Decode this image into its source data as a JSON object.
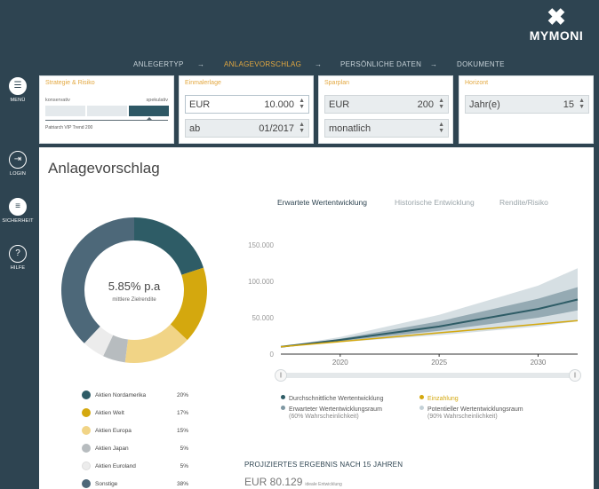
{
  "brand": {
    "name": "MYMONI"
  },
  "steps": [
    {
      "label": "ANLEGERTYP",
      "active": false
    },
    {
      "label": "→",
      "active": false
    },
    {
      "label": "ANLAGEVORSCHLAG",
      "active": true
    },
    {
      "label": "→",
      "active": false
    },
    {
      "label": "PERSÖNLICHE DATEN",
      "active": false
    },
    {
      "label": "→",
      "active": false
    },
    {
      "label": "DOKUMENTE",
      "active": false
    }
  ],
  "rail": {
    "menu": "MENÜ",
    "login": "LOGIN",
    "security": "SICHERHEIT",
    "help": "HILFE"
  },
  "filters": {
    "strategy": {
      "caption": "Strategie & Risiko",
      "left_label": "konservativ",
      "right_label": "spekulativ",
      "note": "Patriarch VIP Trend 200",
      "selected_level": 3,
      "levels": 3
    },
    "one_time": {
      "caption": "Einmalerlage",
      "currency": "EUR",
      "amount": "10.000",
      "from_label": "ab",
      "from_value": "01/2017"
    },
    "savings": {
      "caption": "Sparplan",
      "currency": "EUR",
      "amount": "200",
      "interval": "monatlich"
    },
    "horizon": {
      "caption": "Horizont",
      "unit": "Jahr(e)",
      "value": "15"
    }
  },
  "main": {
    "title": "Anlagevorschlag",
    "donut": {
      "rate": "5.85% p.a",
      "rate_label": "mittlere Zielrendite"
    },
    "allocation": [
      {
        "name": "Aktien Nordamerika",
        "percent": "20%",
        "value": 20,
        "color": "#2e5c66"
      },
      {
        "name": "Aktien Welt",
        "percent": "17%",
        "value": 17,
        "color": "#d4a80e"
      },
      {
        "name": "Aktien Europa",
        "percent": "15%",
        "value": 15,
        "color": "#f1d486"
      },
      {
        "name": "Aktien Japan",
        "percent": "5%",
        "value": 5,
        "color": "#b7bcbf"
      },
      {
        "name": "Aktien Euroland",
        "percent": "5%",
        "value": 5,
        "color": "#ececec"
      },
      {
        "name": "Sonstige",
        "percent": "38%",
        "value": 38,
        "color": "#4d6879"
      }
    ],
    "tabs": [
      {
        "label": "Erwartete Wertentwicklung",
        "active": true
      },
      {
        "label": "Historische Entwicklung",
        "active": false
      },
      {
        "label": "Rendite/Risiko",
        "active": false
      }
    ],
    "chart_legend": {
      "avg": "Durchschnittliche Wertentwicklung",
      "deposit": "Einzahlung",
      "expected_range": "Erwarteter Wertentwicklungsraum",
      "expected_range_sub": "(60% Wahrscheinlichkeit)",
      "potential_range": "Potentieller Wertentwicklungsraum",
      "potential_range_sub": "(90% Wahrscheinlichkeit)"
    },
    "projection": {
      "heading": "PROJIZIERTES ERGEBNIS NACH 15 JAHREN",
      "value": "EUR 80.129",
      "note": "ideale Entwicklung"
    },
    "slider": {
      "left_glyph": "||",
      "right_glyph": "||"
    }
  },
  "colors": {
    "background": "#2e4451",
    "accent": "#e3a840",
    "avg_line": "#2e5c66",
    "deposit_line": "#d4a80e",
    "band_inner": "#7f98a3",
    "band_outer": "#c4d1d7"
  },
  "chart_data": {
    "type": "area",
    "x": [
      2017,
      2020,
      2025,
      2030,
      2032
    ],
    "xticks": [
      "2020",
      "2025",
      "2030"
    ],
    "yticks": [
      "0",
      "50.000",
      "100.000",
      "150.000"
    ],
    "ylim": [
      0,
      150000
    ],
    "xlim": [
      2017,
      2032
    ],
    "series": [
      {
        "name": "Durchschnittliche Wertentwicklung",
        "values": [
          10000,
          19500,
          38000,
          62000,
          75000
        ]
      },
      {
        "name": "Einzahlung",
        "values": [
          10000,
          17200,
          29200,
          41200,
          46000
        ]
      }
    ],
    "bands": [
      {
        "name": "Potentieller Wertentwicklungsraum",
        "lower": [
          10000,
          16500,
          26000,
          38000,
          45000
        ],
        "upper": [
          10000,
          23500,
          54000,
          94000,
          118000
        ]
      },
      {
        "name": "Erwarteter Wertentwicklungsraum",
        "lower": [
          10000,
          18000,
          32000,
          50000,
          60000
        ],
        "upper": [
          10000,
          21000,
          45000,
          76000,
          92000
        ]
      }
    ]
  }
}
